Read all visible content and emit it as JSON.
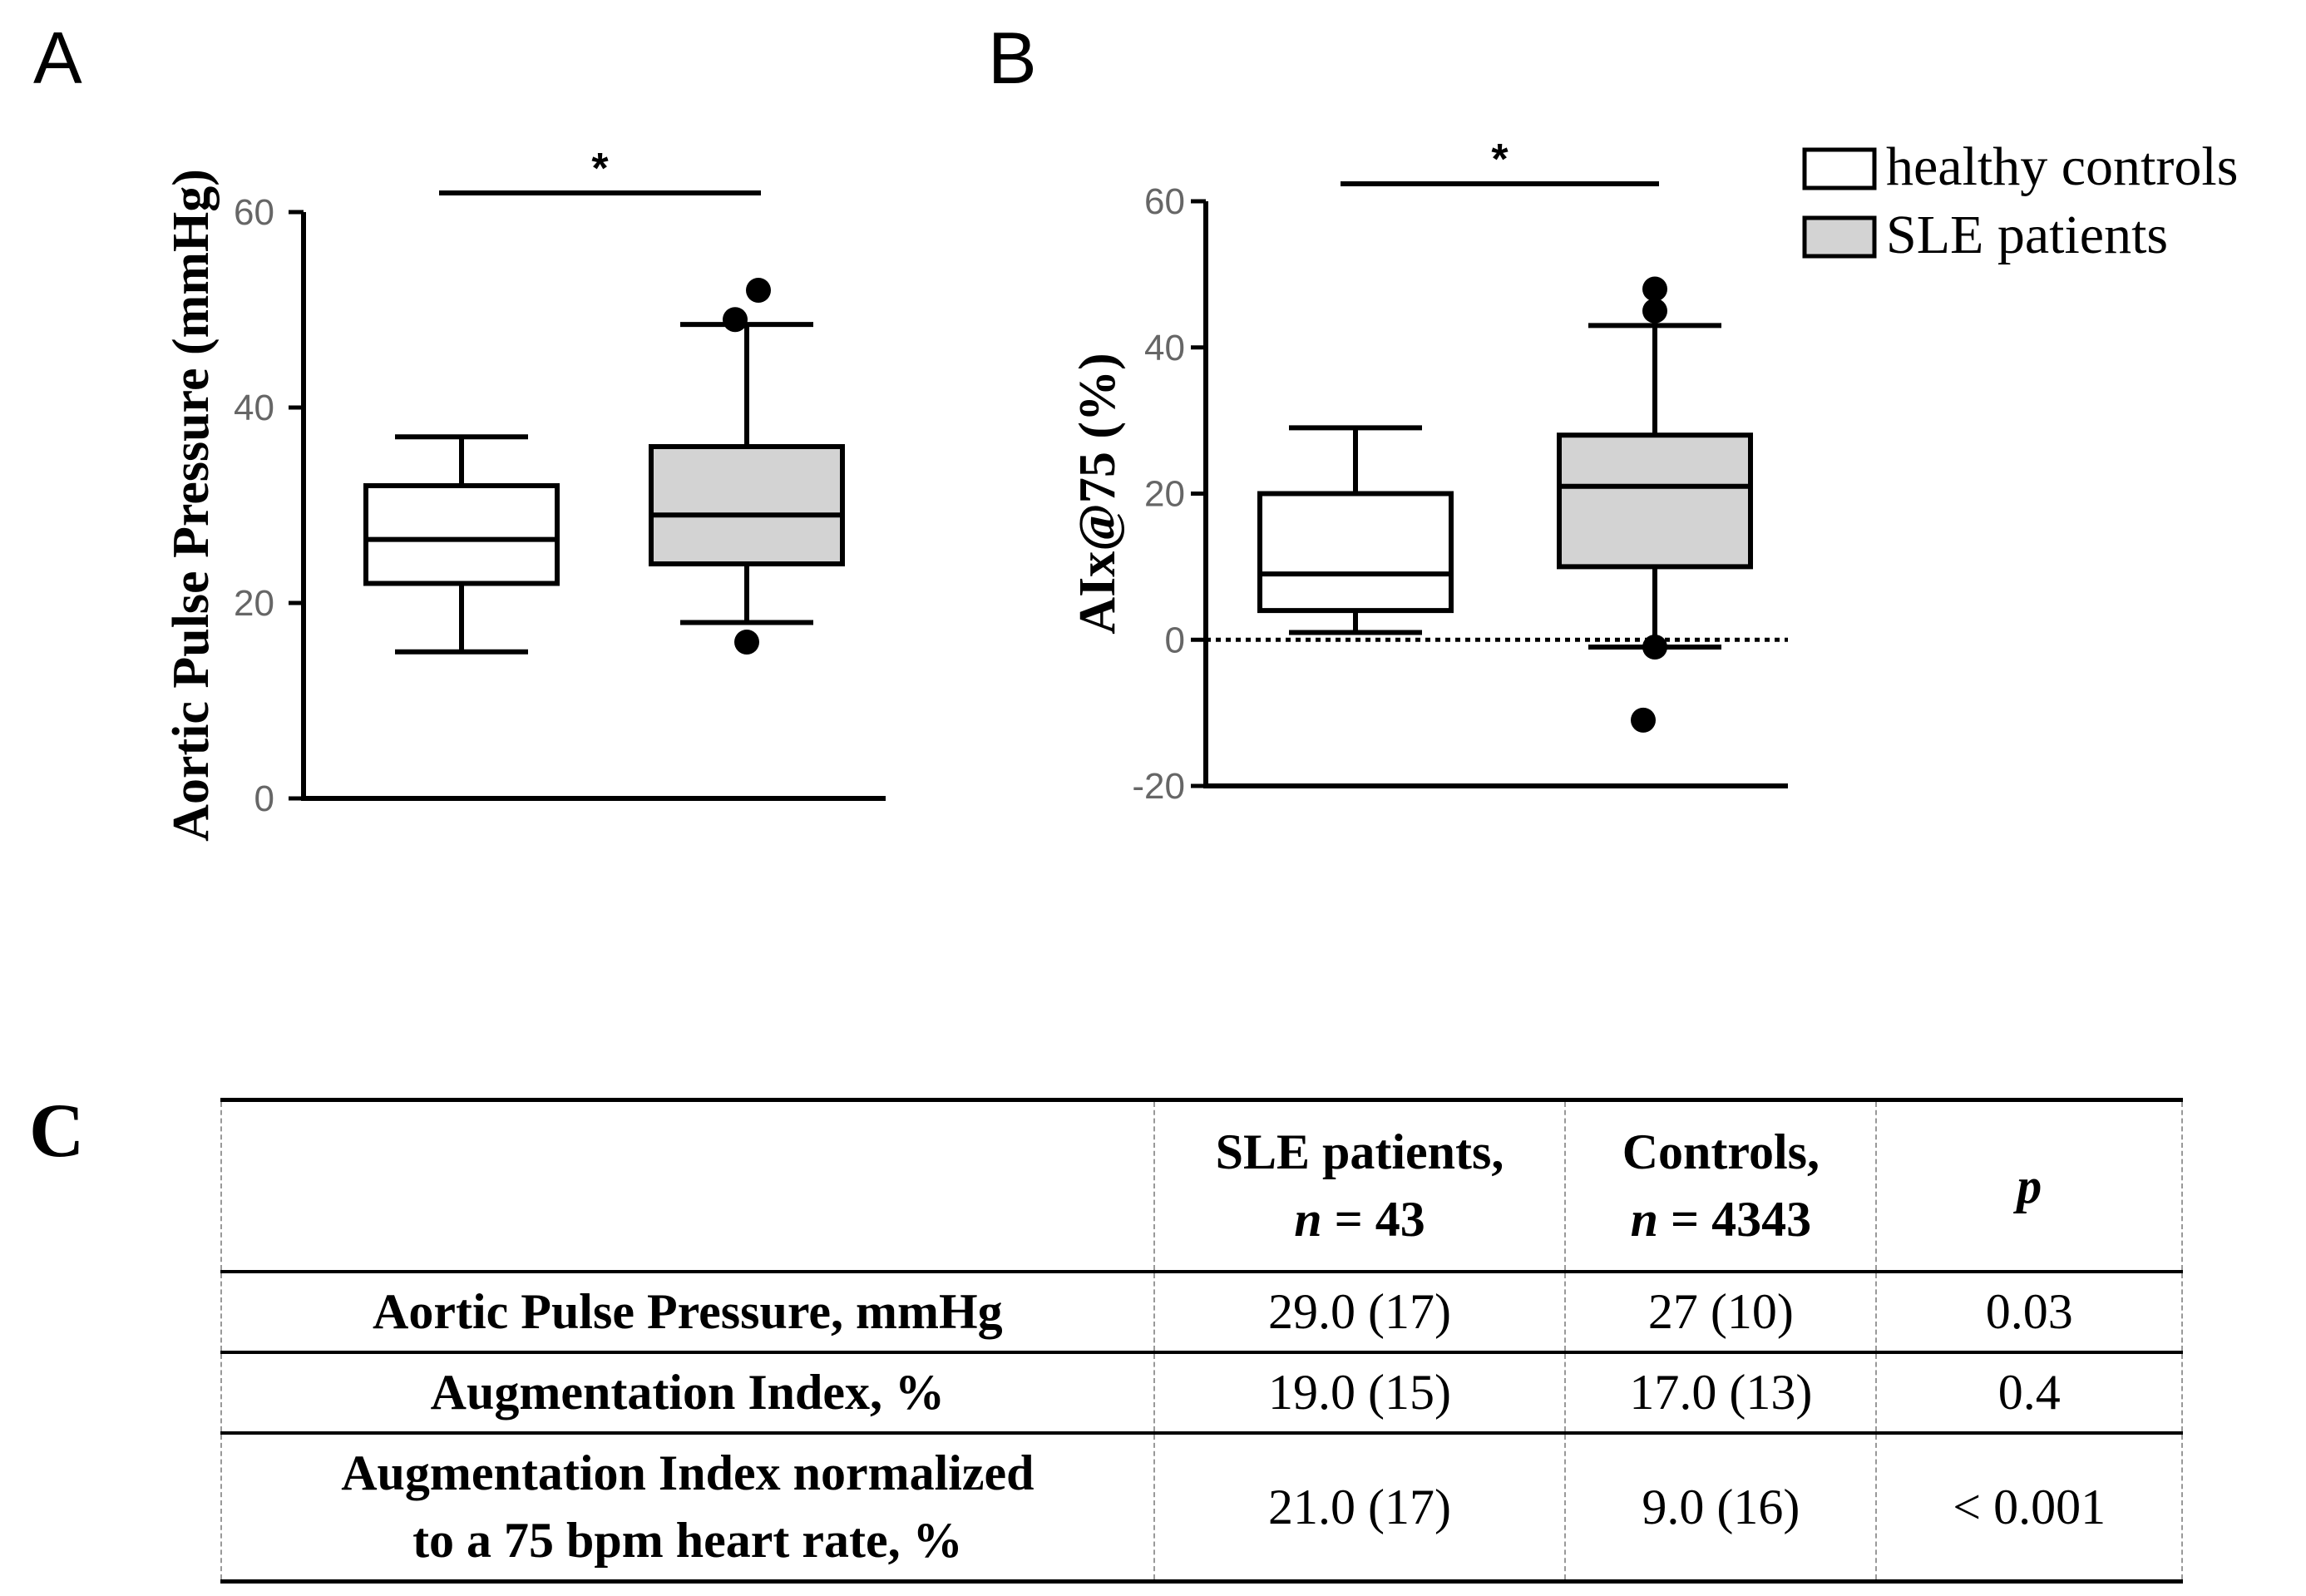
{
  "panels": {
    "a_letter": "A",
    "b_letter": "B",
    "c_letter": "C"
  },
  "legend": {
    "healthy": "healthy controls",
    "sle": "SLE patients"
  },
  "colors": {
    "healthy_fill": "#ffffff",
    "sle_fill": "#d3d3d3",
    "axis": "#000000",
    "tick_text": "#666666"
  },
  "chart_data": [
    {
      "type": "box",
      "panel": "A",
      "ylabel": "Aortic Pulse Pressure (mmHg)",
      "ylim": [
        0,
        60
      ],
      "yticks": [
        "0",
        "20",
        "40",
        "60"
      ],
      "significance": "*",
      "series": [
        {
          "name": "healthy controls",
          "whisker_low": 15,
          "q1": 22,
          "median": 26.5,
          "q3": 32,
          "whisker_high": 37,
          "outliers": []
        },
        {
          "name": "SLE patients",
          "whisker_low": 18,
          "q1": 24,
          "median": 29,
          "q3": 36,
          "whisker_high": 48.5,
          "outliers": [
            16,
            49,
            52
          ]
        }
      ]
    },
    {
      "type": "box",
      "panel": "B",
      "ylabel": "AIx@75 (%)",
      "ylim": [
        -20,
        60
      ],
      "yticks": [
        "-20",
        "0",
        "20",
        "40",
        "60"
      ],
      "significance": "*",
      "reference_line": 0,
      "series": [
        {
          "name": "healthy controls",
          "whisker_low": 1,
          "q1": 4,
          "median": 9,
          "q3": 20,
          "whisker_high": 29,
          "outliers": []
        },
        {
          "name": "SLE patients",
          "whisker_low": -1,
          "q1": 10,
          "median": 21,
          "q3": 28,
          "whisker_high": 43,
          "outliers": [
            -1,
            -11,
            45,
            48
          ]
        }
      ]
    }
  ],
  "table": {
    "header": {
      "col1_line1": "SLE patients,",
      "col1_line2": "n = 43",
      "col2_line1": "Controls,",
      "col2_line2": "n = 4343",
      "col3": "p"
    },
    "rows": [
      {
        "label_line1": "Aortic Pulse Pressure, mmHg",
        "label_line2": "",
        "sle": "29.0 (17)",
        "controls": "27 (10)",
        "p": "0.03"
      },
      {
        "label_line1": "Augmentation Index, %",
        "label_line2": "",
        "sle": "19.0 (15)",
        "controls": "17.0 (13)",
        "p": "0.4"
      },
      {
        "label_line1": "Augmentation Index normalized",
        "label_line2": "to a 75 bpm heart rate, %",
        "sle": "21.0 (17)",
        "controls": "9.0 (16)",
        "p": "< 0.001"
      }
    ]
  }
}
